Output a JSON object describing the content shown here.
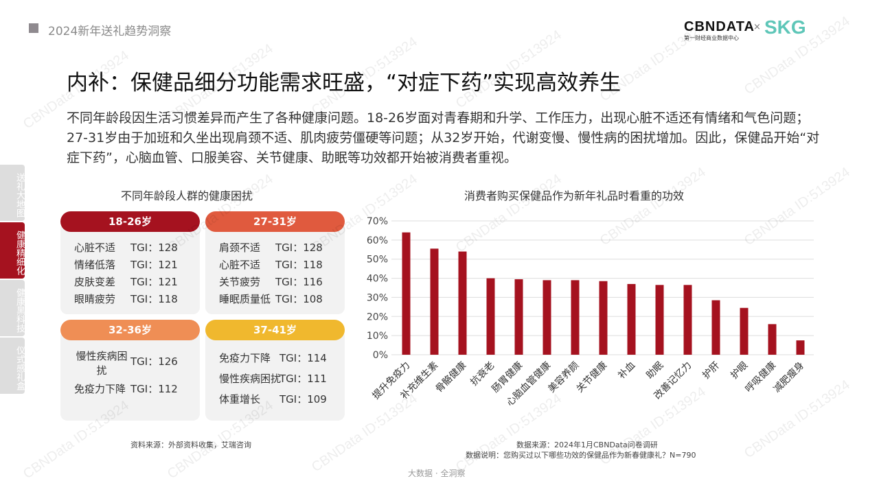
{
  "header": {
    "section": "2024新年送礼趋势洞察",
    "logo_main": "CBNDATA",
    "logo_sub": "第一财经商业数据中心",
    "logo_x": "×",
    "logo_partner": "SKG"
  },
  "title": "内补：保健品细分功能需求旺盛，“对症下药”实现高效养生",
  "intro": "不同年龄段因生活习惯差异而产生了各种健康问题。18-26岁面对青春期和升学、工作压力，出现心脏不适还有情绪和气色问题；27-31岁由于加班和久坐出现肩颈不适、肌肉疲劳僵硬等问题；从32岁开始，代谢变慢、慢性病的困扰增加。因此，保健品开始“对症下药”，心脑血管、口服美容、关节健康、助眠等功效都开始被消费者重视。",
  "sidebar": [
    {
      "label": "送礼大地图",
      "active": false
    },
    {
      "label": "健康精细化",
      "active": true
    },
    {
      "label": "健康黑科技",
      "active": false
    },
    {
      "label": "仪式感礼盒",
      "active": false
    }
  ],
  "left": {
    "title": "不同年龄段人群的健康困扰",
    "groups": [
      {
        "age": "18-26岁",
        "color": "#a5121f",
        "items": [
          {
            "k": "心脏不适",
            "v": "TGI：128"
          },
          {
            "k": "情绪低落",
            "v": "TGI：121"
          },
          {
            "k": "皮肤变差",
            "v": "TGI：121"
          },
          {
            "k": "眼睛疲劳",
            "v": "TGI：118"
          }
        ]
      },
      {
        "age": "27-31岁",
        "color": "#e05a3e",
        "items": [
          {
            "k": "肩颈不适",
            "v": "TGI：128"
          },
          {
            "k": "心脏不适",
            "v": "TGI：118"
          },
          {
            "k": "关节疲劳",
            "v": "TGI：116"
          },
          {
            "k": "睡眠质量低",
            "v": "TGI：108"
          }
        ]
      },
      {
        "age": "32-36岁",
        "color": "#ef8e55",
        "items": [
          {
            "k": "慢性疾病困扰",
            "v": "TGI：126"
          },
          {
            "k": "免疫力下降",
            "v": "TGI：112"
          }
        ]
      },
      {
        "age": "37-41岁",
        "color": "#f0b82e",
        "items": [
          {
            "k": "免疫力下降",
            "v": "TGI：114"
          },
          {
            "k": "慢性疾病困扰",
            "v": "TGI：111"
          },
          {
            "k": "体重增长",
            "v": "TGI：109"
          }
        ]
      }
    ],
    "source": "资料来源：外部资料收集，艾瑞咨询"
  },
  "chart_data": {
    "type": "bar",
    "title": "消费者购买保健品作为新年礼品时看重的功效",
    "categories": [
      "提升免疫力",
      "补充维生素",
      "骨骼健康",
      "抗衰老",
      "肠胃健康",
      "心脑血管健康",
      "美容养颜",
      "关节健康",
      "补血",
      "助眠",
      "改善记忆力",
      "护肝",
      "护眼",
      "呼吸健康",
      "减肥瘦身"
    ],
    "values": [
      64,
      55.5,
      54,
      40,
      39.5,
      39,
      39,
      38.5,
      37,
      36.5,
      36.5,
      28.5,
      24.5,
      16,
      7.5
    ],
    "ylim": [
      0,
      70
    ],
    "yticks": [
      "0%",
      "10%",
      "20%",
      "30%",
      "40%",
      "50%",
      "60%",
      "70%"
    ],
    "grid": true,
    "color": "#a5121f"
  },
  "chart_source": "数据来源：2024年1月CBNData问卷调研",
  "chart_note": "数据说明：您购买过以下哪些功效的保健品作为新春健康礼？N=790",
  "footer": "大数据 · 全洞察",
  "watermark": "CBNData ID:513924"
}
